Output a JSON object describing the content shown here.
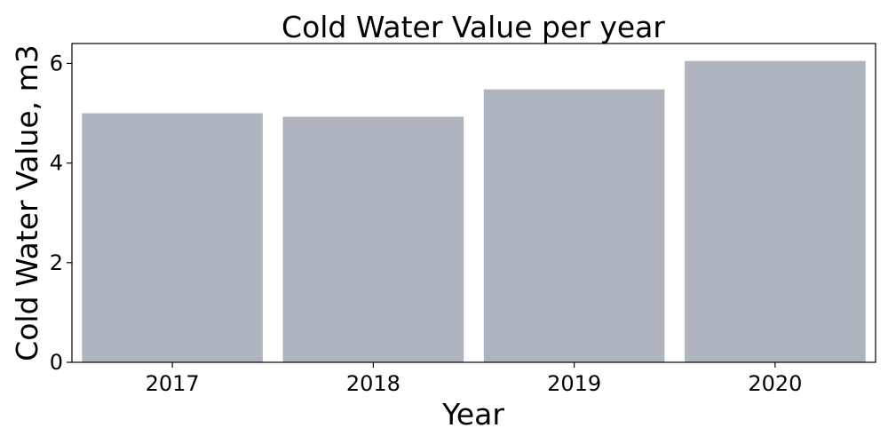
{
  "chart_data": {
    "type": "bar",
    "title": "Cold Water Value per year",
    "xlabel": "Year",
    "ylabel": "Cold Water Value, m3",
    "categories": [
      "2017",
      "2018",
      "2019",
      "2020"
    ],
    "values": [
      5.0,
      4.93,
      5.48,
      6.05
    ],
    "ylim": [
      0,
      6.4
    ],
    "yticks": [
      0,
      2,
      4,
      6
    ],
    "bar_color": "#aeb5be",
    "grid": false,
    "legend": "none"
  }
}
